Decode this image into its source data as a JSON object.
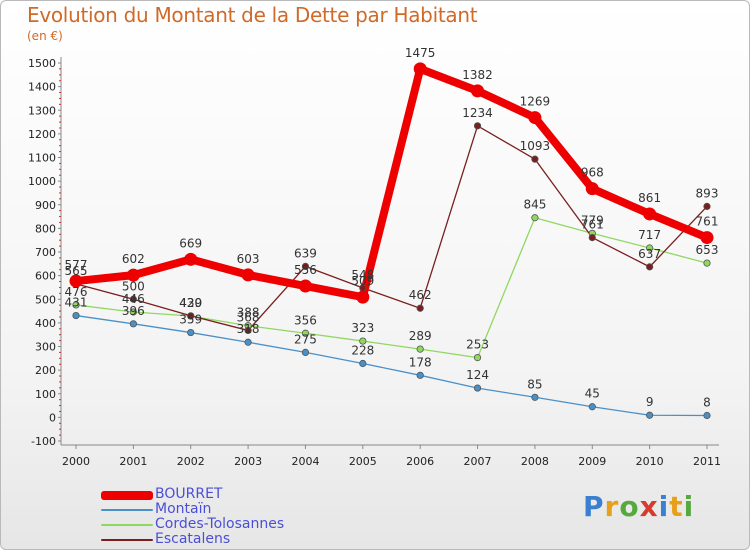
{
  "title": "Evolution du Montant de la Dette par Habitant",
  "subtitle": "(en €)",
  "logo_text": "Proxiti",
  "logo_colors": [
    "#3a7fd0",
    "#e8a01b",
    "#56a93f",
    "#d83b2d",
    "#3a7fd0",
    "#e8a01b",
    "#56a93f"
  ],
  "chart_data": {
    "type": "line",
    "x": [
      "2000",
      "2001",
      "2002",
      "2003",
      "2004",
      "2005",
      "2006",
      "2007",
      "2008",
      "2009",
      "2010",
      "2011"
    ],
    "yticks": [
      "1500",
      "1400",
      "1300",
      "1200",
      "1100",
      "1000",
      "900",
      "800",
      "700",
      "600",
      "500",
      "400",
      "300",
      "200",
      "100",
      "0",
      "-100"
    ],
    "ylim": [
      -100,
      1500
    ],
    "grid": false,
    "legend_position": "bottom-left",
    "series": [
      {
        "name": "BOURRET",
        "color": "#ee0000",
        "values": [
          577,
          602,
          669,
          603,
          556,
          509,
          1475,
          1382,
          1269,
          968,
          861,
          761
        ],
        "labels": [
          "577",
          "602",
          "669",
          "603",
          "556",
          "509",
          "1475",
          "1382",
          "1269",
          "968",
          "861",
          "761"
        ]
      },
      {
        "name": "Montaïn",
        "color": "#4a90c8",
        "values": [
          431,
          396,
          359,
          318,
          275,
          228,
          178,
          124,
          85,
          45,
          9,
          8
        ],
        "labels": [
          "431",
          "396",
          "359",
          "318",
          "275",
          "228",
          "178",
          "124",
          "85",
          "45",
          "9",
          "8"
        ]
      },
      {
        "name": "Cordes-Tolosannes",
        "color": "#8fd860",
        "values": [
          476,
          446,
          429,
          388,
          356,
          323,
          289,
          253,
          845,
          779,
          717,
          653
        ],
        "labels": [
          "476",
          "446",
          "429",
          "388",
          "356",
          "323",
          "289",
          "253",
          "845",
          "779",
          "717",
          "653"
        ]
      },
      {
        "name": "Escatalens",
        "color": "#7a1f1f",
        "values": [
          565,
          500,
          430,
          368,
          639,
          548,
          462,
          1234,
          1093,
          761,
          637,
          893
        ],
        "labels": [
          "565",
          "500",
          "430",
          "368",
          "639",
          "548",
          "462",
          "1234",
          "1093",
          "761",
          "637",
          "893"
        ]
      }
    ]
  }
}
